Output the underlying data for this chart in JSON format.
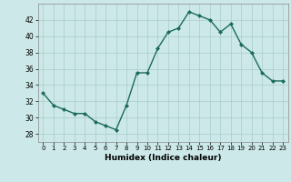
{
  "x": [
    0,
    1,
    2,
    3,
    4,
    5,
    6,
    7,
    8,
    9,
    10,
    11,
    12,
    13,
    14,
    15,
    16,
    17,
    18,
    19,
    20,
    21,
    22,
    23
  ],
  "y": [
    33,
    31.5,
    31,
    30.5,
    30.5,
    29.5,
    29,
    28.5,
    31.5,
    35.5,
    35.5,
    38.5,
    40.5,
    41,
    43,
    42.5,
    42,
    40.5,
    41.5,
    39,
    38,
    35.5,
    34.5,
    34.5
  ],
  "xlabel": "Humidex (Indice chaleur)",
  "ylim": [
    27,
    44
  ],
  "xlim": [
    -0.5,
    23.5
  ],
  "yticks": [
    28,
    30,
    32,
    34,
    36,
    38,
    40,
    42
  ],
  "xticks": [
    0,
    1,
    2,
    3,
    4,
    5,
    6,
    7,
    8,
    9,
    10,
    11,
    12,
    13,
    14,
    15,
    16,
    17,
    18,
    19,
    20,
    21,
    22,
    23
  ],
  "line_color": "#1a6b5a",
  "marker_color": "#1a6b5a",
  "bg_color": "#cce8e8",
  "grid_color": "#aacccc"
}
